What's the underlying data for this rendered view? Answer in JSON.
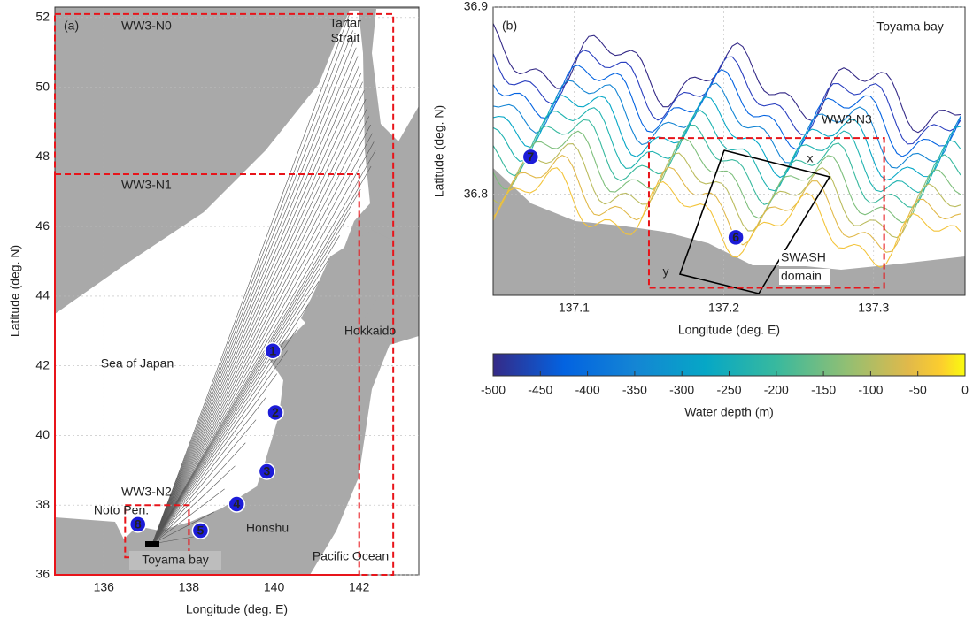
{
  "panels": [
    {
      "label": "(a)",
      "xlabel": "Longitude (deg. E)",
      "ylabel": "Latitude (deg. N)",
      "xlim": [
        134.85,
        143.4
      ],
      "ylim": [
        36,
        52.3
      ],
      "xticks": [
        136,
        138,
        140,
        142
      ],
      "yticks": [
        36,
        38,
        40,
        42,
        44,
        46,
        48,
        50,
        52
      ],
      "domains": [
        {
          "name": "WW3-N0",
          "lon": [
            134.85,
            142.8
          ],
          "lat": [
            36,
            52.1
          ]
        },
        {
          "name": "WW3-N1",
          "lon": [
            134.85,
            142
          ],
          "lat": [
            36,
            47.5
          ]
        },
        {
          "name": "WW3-N2",
          "lon": [
            136.5,
            138
          ],
          "lat": [
            36.5,
            38
          ]
        }
      ],
      "annotations": [
        "Tartar",
        "Strait",
        "Hokkaido",
        "Sea of Japan",
        "Noto Pen.",
        "Honshu",
        "Pacific Ocean",
        "Toyama bay"
      ],
      "sites": [
        {
          "label": "1",
          "lon": 139.97,
          "lat": 42.43
        },
        {
          "label": "2",
          "lon": 140.03,
          "lat": 40.66
        },
        {
          "label": "3",
          "lon": 139.83,
          "lat": 38.97
        },
        {
          "label": "4",
          "lon": 139.12,
          "lat": 38.03
        },
        {
          "label": "5",
          "lon": 138.27,
          "lat": 37.27
        },
        {
          "label": "8",
          "lon": 136.8,
          "lat": 37.45
        }
      ]
    },
    {
      "label": "(b)",
      "xlabel": "Longitude (deg. E)",
      "ylabel": "Latitude (deg. N)",
      "xlim": [
        137.046,
        137.361
      ],
      "ylim": [
        36.746,
        36.9
      ],
      "xticks": [
        137.1,
        137.2,
        137.3
      ],
      "yticks": [
        36.8,
        36.9
      ],
      "domains": [
        {
          "name": "WW3-N3",
          "lon": [
            137.15,
            137.307
          ],
          "lat": [
            36.75,
            36.83
          ]
        }
      ],
      "annotations": [
        "Toyama bay",
        "x",
        "y",
        "SWASH",
        "domain"
      ],
      "sites": [
        {
          "label": "7",
          "lon": 137.071,
          "lat": 36.82
        },
        {
          "label": "6",
          "lon": 137.208,
          "lat": 36.777
        }
      ]
    }
  ],
  "colorbar": {
    "label": "Water depth (m)",
    "lim": [
      -500,
      0
    ],
    "ticks": [
      -500,
      -450,
      -400,
      -350,
      -300,
      -250,
      -200,
      -150,
      -100,
      -50,
      0
    ]
  }
}
